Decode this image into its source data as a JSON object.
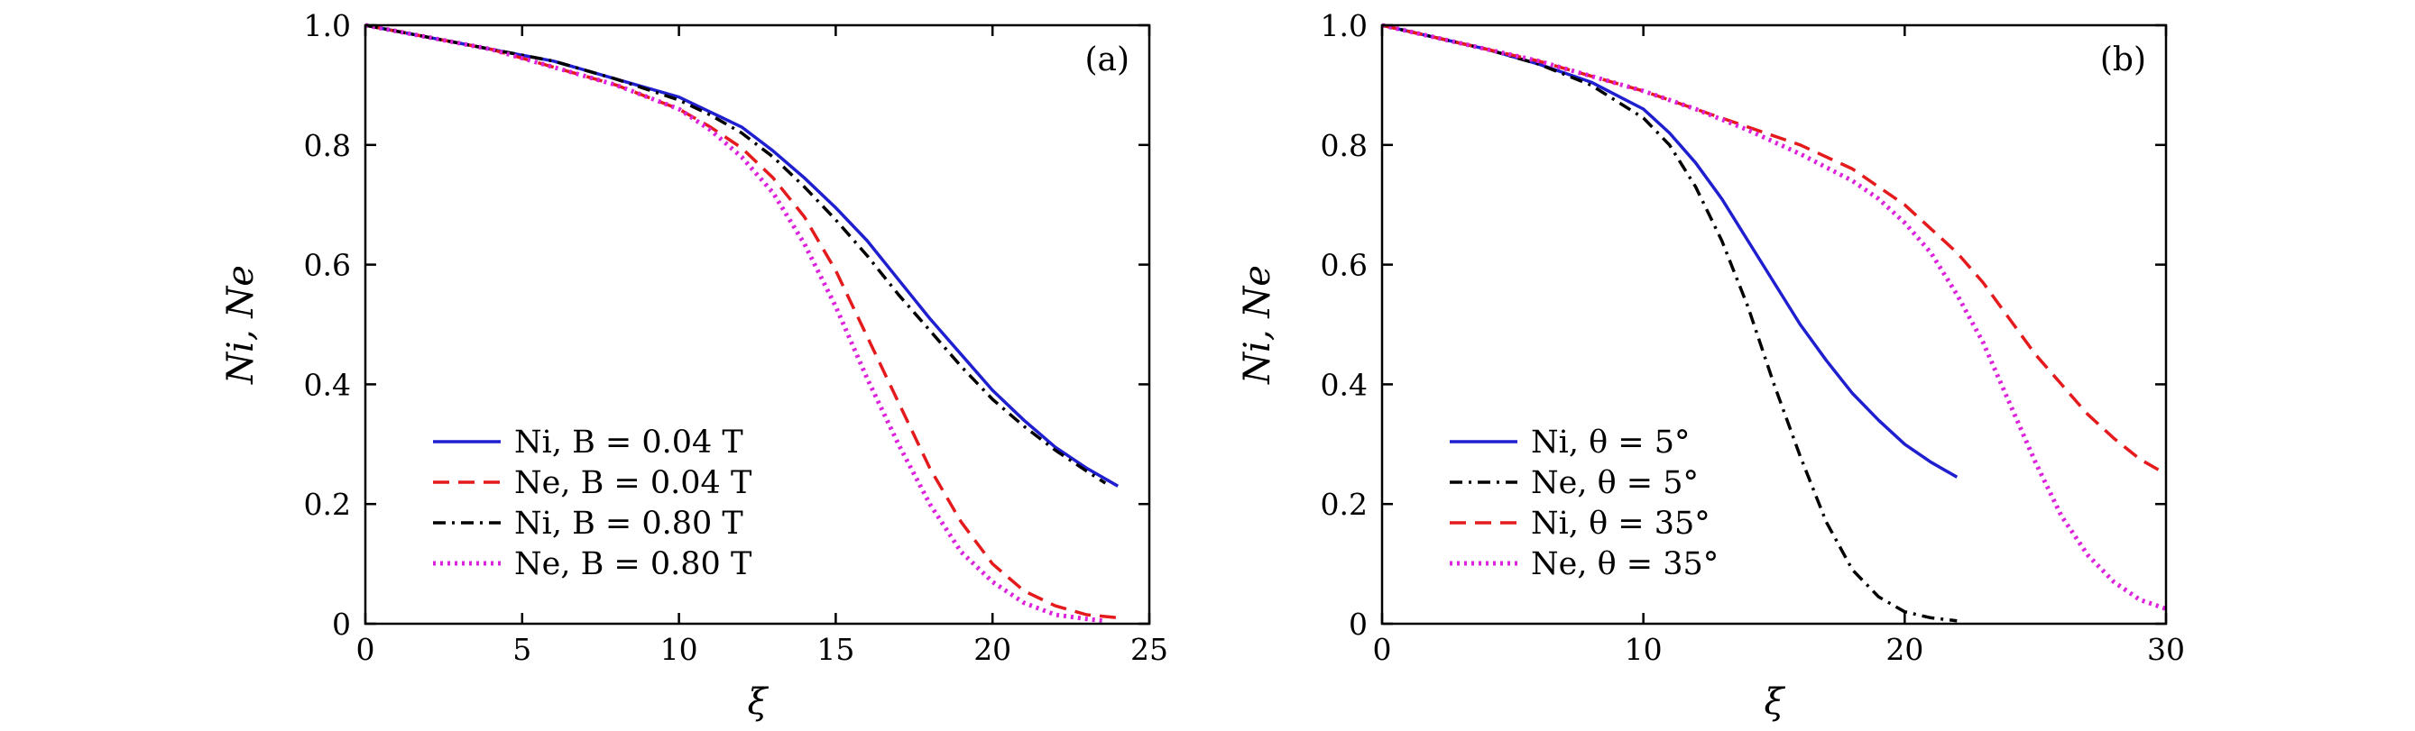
{
  "chart_data": [
    {
      "type": "line",
      "panel_label": "(a)",
      "xlabel": "ξ",
      "ylabel": "Ni, Ne",
      "xlim": [
        0,
        25
      ],
      "ylim": [
        0,
        1.0
      ],
      "xticks": [
        0,
        5,
        10,
        15,
        20,
        25
      ],
      "yticks": [
        0,
        0.2,
        0.4,
        0.6,
        0.8,
        1.0
      ],
      "ytick_labels": [
        "0",
        "0.2",
        "0.4",
        "0.6",
        "0.8",
        "1.0"
      ],
      "legend_position": "bottom-left",
      "series": [
        {
          "name": "Ni, B = 0.04 T",
          "color": "#1f1fd0",
          "dash": "solid",
          "x": [
            0,
            2,
            4,
            6,
            8,
            10,
            11,
            12,
            13,
            14,
            15,
            16,
            17,
            18,
            19,
            20,
            21,
            22,
            23,
            24
          ],
          "y": [
            1.0,
            0.98,
            0.96,
            0.94,
            0.91,
            0.88,
            0.855,
            0.83,
            0.79,
            0.745,
            0.695,
            0.64,
            0.575,
            0.51,
            0.45,
            0.39,
            0.34,
            0.295,
            0.26,
            0.23
          ]
        },
        {
          "name": "Ne, B = 0.04 T",
          "color": "#e41a1c",
          "dash": "dashed",
          "x": [
            0,
            2,
            4,
            6,
            8,
            10,
            11,
            12,
            13,
            14,
            15,
            16,
            17,
            18,
            19,
            20,
            21,
            22,
            23,
            24
          ],
          "y": [
            1.0,
            0.98,
            0.96,
            0.93,
            0.9,
            0.86,
            0.83,
            0.795,
            0.745,
            0.68,
            0.59,
            0.48,
            0.37,
            0.26,
            0.17,
            0.1,
            0.055,
            0.03,
            0.015,
            0.01
          ]
        },
        {
          "name": "Ni, B = 0.80 T",
          "color": "#000000",
          "dash": "dashdot",
          "x": [
            0,
            2,
            4,
            6,
            8,
            10,
            11,
            12,
            13,
            14,
            15,
            16,
            17,
            18,
            19,
            20,
            21,
            22,
            23,
            23.6
          ],
          "y": [
            1.0,
            0.98,
            0.96,
            0.94,
            0.91,
            0.875,
            0.85,
            0.82,
            0.78,
            0.73,
            0.675,
            0.615,
            0.55,
            0.49,
            0.43,
            0.375,
            0.33,
            0.29,
            0.255,
            0.235
          ]
        },
        {
          "name": "Ne, B = 0.80 T",
          "color": "#dd22dd",
          "dash": "dotted",
          "x": [
            0,
            2,
            4,
            6,
            8,
            10,
            11,
            12,
            13,
            14,
            15,
            16,
            17,
            18,
            19,
            20,
            21,
            22,
            23,
            23.5
          ],
          "y": [
            1.0,
            0.98,
            0.96,
            0.93,
            0.9,
            0.86,
            0.825,
            0.78,
            0.72,
            0.635,
            0.53,
            0.41,
            0.3,
            0.2,
            0.12,
            0.07,
            0.035,
            0.015,
            0.008,
            0.005
          ]
        }
      ]
    },
    {
      "type": "line",
      "panel_label": "(b)",
      "xlabel": "ξ",
      "ylabel": "Ni, Ne",
      "xlim": [
        0,
        30
      ],
      "ylim": [
        0,
        1.0
      ],
      "xticks": [
        0,
        10,
        20,
        30
      ],
      "yticks": [
        0,
        0.2,
        0.4,
        0.6,
        0.8,
        1.0
      ],
      "ytick_labels": [
        "0",
        "0.2",
        "0.4",
        "0.6",
        "0.8",
        "1.0"
      ],
      "legend_position": "bottom-left",
      "series": [
        {
          "name": "Ni, θ = 5°",
          "color": "#1f1fd0",
          "dash": "solid",
          "x": [
            0,
            2,
            4,
            6,
            8,
            10,
            11,
            12,
            13,
            14,
            15,
            16,
            17,
            18,
            19,
            20,
            21,
            22
          ],
          "y": [
            1.0,
            0.98,
            0.96,
            0.935,
            0.905,
            0.86,
            0.82,
            0.77,
            0.71,
            0.64,
            0.57,
            0.5,
            0.44,
            0.385,
            0.34,
            0.3,
            0.27,
            0.245
          ]
        },
        {
          "name": "Ne, θ = 5°",
          "color": "#000000",
          "dash": "dashdot",
          "x": [
            0,
            2,
            4,
            6,
            8,
            10,
            11,
            12,
            13,
            14,
            15,
            16,
            17,
            18,
            19,
            20,
            21,
            22
          ],
          "y": [
            1.0,
            0.98,
            0.96,
            0.935,
            0.9,
            0.845,
            0.8,
            0.73,
            0.64,
            0.53,
            0.4,
            0.28,
            0.17,
            0.09,
            0.045,
            0.02,
            0.01,
            0.005
          ]
        },
        {
          "name": "Ni, θ = 35°",
          "color": "#e41a1c",
          "dash": "dashed",
          "x": [
            0,
            2,
            4,
            6,
            8,
            10,
            12,
            14,
            16,
            18,
            19,
            20,
            21,
            22,
            23,
            24,
            25,
            26,
            27,
            28,
            29,
            30
          ],
          "y": [
            1.0,
            0.98,
            0.96,
            0.94,
            0.915,
            0.89,
            0.86,
            0.83,
            0.8,
            0.76,
            0.73,
            0.7,
            0.66,
            0.62,
            0.57,
            0.51,
            0.45,
            0.4,
            0.35,
            0.31,
            0.275,
            0.25
          ]
        },
        {
          "name": "Ne, θ = 35°",
          "color": "#dd22dd",
          "dash": "dotted",
          "x": [
            0,
            2,
            4,
            6,
            8,
            10,
            12,
            14,
            16,
            18,
            19,
            20,
            21,
            22,
            23,
            24,
            25,
            26,
            27,
            28,
            29,
            30
          ],
          "y": [
            1.0,
            0.98,
            0.96,
            0.94,
            0.915,
            0.89,
            0.86,
            0.825,
            0.785,
            0.74,
            0.71,
            0.67,
            0.62,
            0.55,
            0.47,
            0.37,
            0.27,
            0.18,
            0.115,
            0.07,
            0.04,
            0.025
          ]
        }
      ]
    }
  ]
}
